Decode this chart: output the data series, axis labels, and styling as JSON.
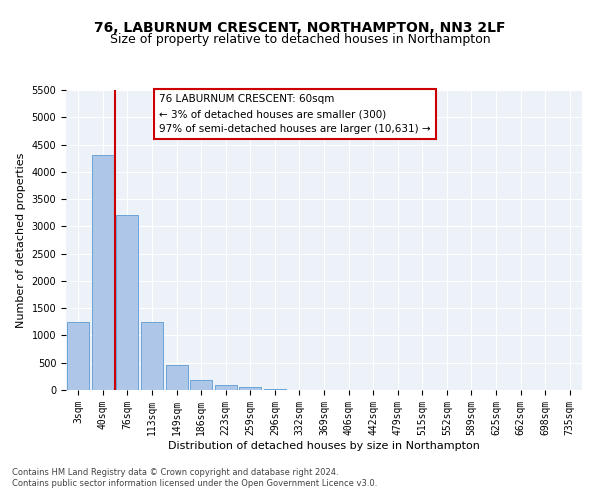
{
  "title": "76, LABURNUM CRESCENT, NORTHAMPTON, NN3 2LF",
  "subtitle": "Size of property relative to detached houses in Northampton",
  "xlabel": "Distribution of detached houses by size in Northampton",
  "ylabel": "Number of detached properties",
  "categories": [
    "3sqm",
    "40sqm",
    "76sqm",
    "113sqm",
    "149sqm",
    "186sqm",
    "223sqm",
    "259sqm",
    "296sqm",
    "332sqm",
    "369sqm",
    "406sqm",
    "442sqm",
    "479sqm",
    "515sqm",
    "552sqm",
    "589sqm",
    "625sqm",
    "662sqm",
    "698sqm",
    "735sqm"
  ],
  "values": [
    1250,
    4300,
    3200,
    1250,
    450,
    185,
    90,
    50,
    20,
    0,
    0,
    0,
    0,
    0,
    0,
    0,
    0,
    0,
    0,
    0,
    0
  ],
  "bar_color": "#aec6e8",
  "bar_edgecolor": "#5b9bd5",
  "marker_color": "#cc0000",
  "annotation_line1": "76 LABURNUM CRESCENT: 60sqm",
  "annotation_line2": "← 3% of detached houses are smaller (300)",
  "annotation_line3": "97% of semi-detached houses are larger (10,631) →",
  "annotation_box_edgecolor": "#cc0000",
  "ylim_min": 0,
  "ylim_max": 5500,
  "yticks": [
    0,
    500,
    1000,
    1500,
    2000,
    2500,
    3000,
    3500,
    4000,
    4500,
    5000,
    5500
  ],
  "background_color": "#edf2f9",
  "grid_color": "#ffffff",
  "footer": "Contains HM Land Registry data © Crown copyright and database right 2024.\nContains public sector information licensed under the Open Government Licence v3.0.",
  "title_fontsize": 10,
  "subtitle_fontsize": 9,
  "axis_label_fontsize": 8,
  "tick_fontsize": 7,
  "footer_fontsize": 6,
  "red_line_x": 1.5
}
